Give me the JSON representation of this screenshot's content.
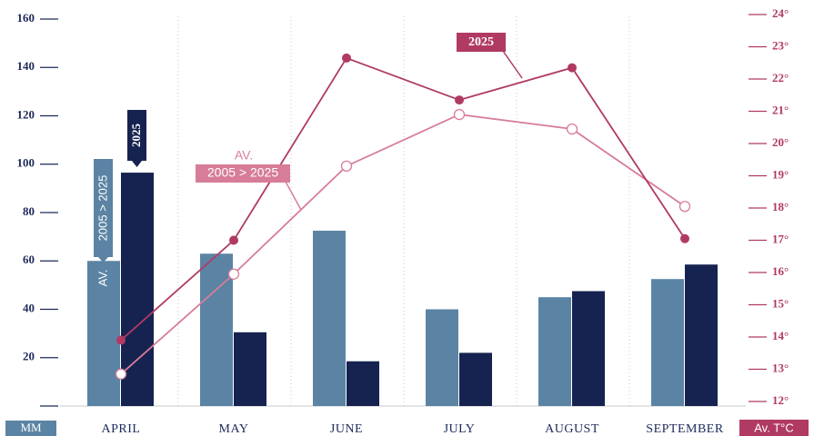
{
  "chart_data": {
    "type": "bar",
    "y_label": "MM",
    "y2_label": "Av. T°C",
    "categories": [
      "APRIL",
      "MAY",
      "JUNE",
      "JULY",
      "AUGUST",
      "SEPTEMBER"
    ],
    "series": [
      {
        "name": "2005 > 2025",
        "type": "bar",
        "color": "#5b84a4",
        "values": [
          60,
          63,
          72.5,
          40,
          45,
          52.5
        ]
      },
      {
        "name": "2025",
        "type": "bar",
        "color": "#162350",
        "values": [
          96.5,
          30.5,
          18.5,
          22,
          47.5,
          58.5
        ]
      },
      {
        "name": "2005 > 2025",
        "type": "line",
        "axis": "y2",
        "color": "#d77d98",
        "values": [
          12.85,
          15.95,
          19.3,
          20.9,
          20.45,
          18.05
        ]
      },
      {
        "name": "2025",
        "type": "line",
        "axis": "y2",
        "color": "#b03a63",
        "values": [
          13.9,
          17,
          22.65,
          21.35,
          22.35,
          17.05
        ]
      }
    ],
    "bar_note": "AV.",
    "line_note": "AV.",
    "ylim": [
      0,
      160
    ],
    "yticks": [
      20,
      40,
      60,
      80,
      100,
      120,
      140,
      160
    ],
    "y2lim": [
      12,
      24
    ],
    "y2ticks": [
      {
        "value": 12,
        "label": "12°"
      },
      {
        "value": 13,
        "label": "13°"
      },
      {
        "value": 14,
        "label": "14°"
      },
      {
        "value": 15,
        "label": "15°"
      },
      {
        "value": 16,
        "label": "16°"
      },
      {
        "value": 17,
        "label": "17°"
      },
      {
        "value": 18,
        "label": "18°"
      },
      {
        "value": 19,
        "label": "19°"
      },
      {
        "value": 20,
        "label": "20°"
      },
      {
        "value": 21,
        "label": "21°"
      },
      {
        "value": 22,
        "label": "22°"
      },
      {
        "value": 23,
        "label": "23°"
      },
      {
        "value": 24,
        "label": "24°"
      }
    ]
  }
}
